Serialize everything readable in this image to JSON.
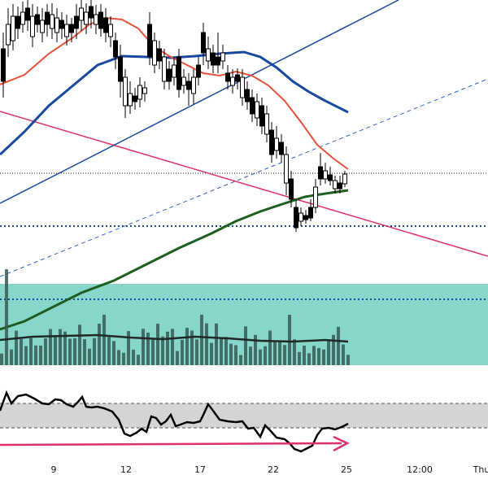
{
  "chart_data": {
    "type": "candlestick",
    "x_axis_ticks": [
      "9",
      "12",
      "17",
      "22",
      "25",
      "12:00",
      "Thu"
    ],
    "colors": {
      "candle_up": "#ffffff",
      "candle_down": "#000000",
      "candle_outline": "#000000",
      "ema_short": "#e8503a",
      "ma_mid": "#1848a0",
      "ma_long": "#1e5e20",
      "trend_down": "#e0306a",
      "trend_up_solid": "#1848a0",
      "trend_up_dashed": "#2f5fc8",
      "volume_zone": "#5ec8b8",
      "volume_bar": "#3a5a56",
      "oscillator_band": "#d4d4d4",
      "divergence_arrow": "#e0306a"
    }
  }
}
